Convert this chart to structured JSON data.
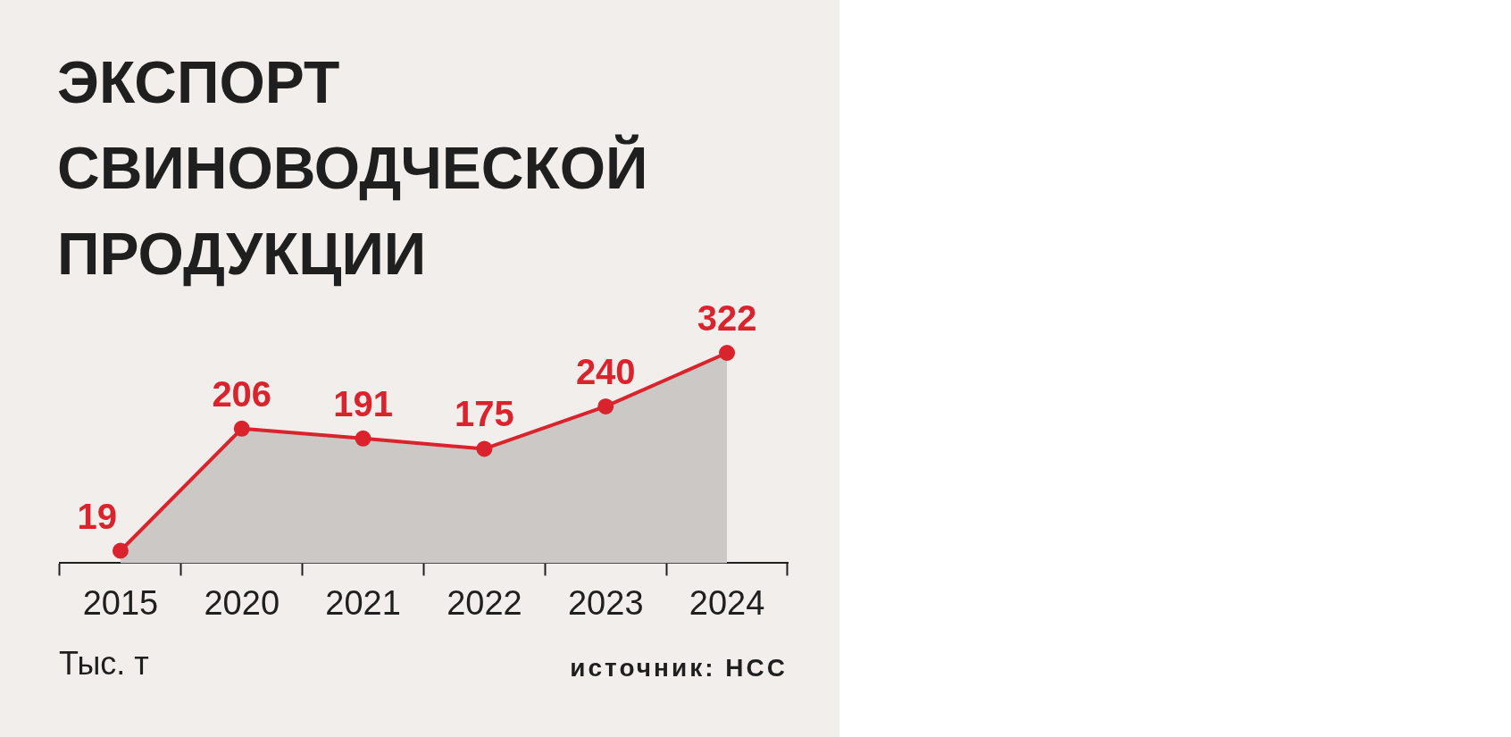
{
  "chart_data": {
    "type": "area",
    "title": "ЭКСПОРТ СВИНОВОДЧЕСКОЙ ПРОДУКЦИИ",
    "annotations": [
      "Тыс. т",
      "источник: НСС"
    ],
    "categories": [
      "2015",
      "2020",
      "2021",
      "2022",
      "2023",
      "2024"
    ],
    "series": [
      {
        "color": "#d9232d",
        "values": [
          19,
          206,
          191,
          175,
          240,
          322
        ]
      }
    ],
    "tick_labels": "x",
    "data_labels": true,
    "marker": "circle",
    "line_style": "solid",
    "grid": false,
    "legend": false
  }
}
